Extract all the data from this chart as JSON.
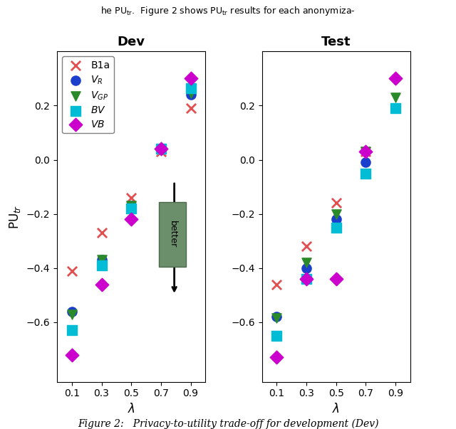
{
  "lambdas": [
    0.1,
    0.3,
    0.5,
    0.7,
    0.9
  ],
  "dev": {
    "B1a": [
      -0.41,
      -0.27,
      -0.14,
      0.03,
      0.19
    ],
    "VR": [
      -0.56,
      -0.37,
      -0.17,
      0.04,
      0.24
    ],
    "VGP": [
      -0.57,
      -0.37,
      -0.17,
      0.04,
      0.245
    ],
    "BV": [
      -0.63,
      -0.39,
      -0.18,
      0.04,
      0.265
    ],
    "VB": [
      -0.72,
      -0.46,
      -0.22,
      0.04,
      0.3
    ]
  },
  "test": {
    "B1a": [
      -0.46,
      -0.32,
      -0.16,
      0.03,
      0.19
    ],
    "VR": [
      -0.58,
      -0.4,
      -0.22,
      -0.01,
      0.19
    ],
    "VGP": [
      -0.585,
      -0.38,
      -0.2,
      0.03,
      0.23
    ],
    "BV": [
      -0.65,
      -0.44,
      -0.25,
      -0.05,
      0.19
    ],
    "VB": [
      -0.73,
      -0.44,
      -0.44,
      0.03,
      0.3
    ]
  },
  "colors": {
    "B1a": "#e05050",
    "VR": "#1a3fcc",
    "VGP": "#2a8a2a",
    "BV": "#00bcd4",
    "VB": "#cc00cc"
  },
  "ylabel": "PU$_{tr}$",
  "xlabel": "$\\lambda$",
  "title_dev": "Dev",
  "title_test": "Test",
  "caption": "Figure 2:   Privacy-to-utility trade-off for development (Dev)",
  "better_label": "better",
  "ylim": [
    -0.82,
    0.4
  ],
  "yticks": [
    -0.6,
    -0.4,
    -0.2,
    0.0,
    0.2
  ]
}
